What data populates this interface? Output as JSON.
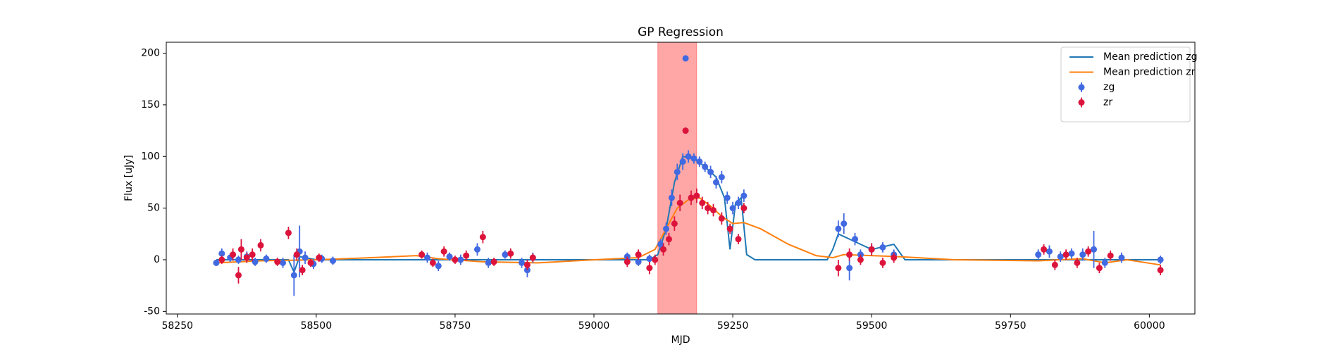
{
  "chart_data": {
    "type": "scatter",
    "title": "GP Regression",
    "xlabel": "MJD",
    "ylabel": "Flux [uJy]",
    "xlim": [
      58230,
      60082
    ],
    "ylim": [
      -52.5,
      210.6
    ],
    "xticks": [
      58250,
      58500,
      58750,
      59000,
      59250,
      59500,
      59750,
      60000
    ],
    "yticks": [
      -50,
      0,
      50,
      100,
      150,
      200
    ],
    "legend": "upper right",
    "span": {
      "x": [
        59115,
        59185
      ],
      "color": "#ff0000"
    },
    "series": [
      {
        "name": "Mean prediction zg",
        "kind": "line",
        "color": "#1f77b4",
        "x": [
          58320,
          58400,
          58450,
          58460,
          58470,
          58500,
          58550,
          58700,
          58900,
          59100,
          59115,
          59130,
          59145,
          59160,
          59180,
          59200,
          59220,
          59235,
          59245,
          59255,
          59265,
          59275,
          59290,
          59420,
          59430,
          59440,
          59460,
          59480,
          59500,
          59540,
          59560,
          59700,
          60020
        ],
        "values": [
          0,
          0,
          0,
          -12,
          3,
          0,
          0,
          0,
          0,
          0,
          5,
          30,
          75,
          100,
          98,
          90,
          80,
          60,
          10,
          55,
          60,
          5,
          0,
          0,
          10,
          25,
          20,
          15,
          10,
          15,
          0,
          0,
          0
        ]
      },
      {
        "name": "Mean prediction zr",
        "kind": "line",
        "color": "#ff7f0e",
        "x": [
          58320,
          58400,
          58500,
          58600,
          58680,
          58720,
          58800,
          58900,
          59000,
          59080,
          59110,
          59130,
          59150,
          59170,
          59190,
          59210,
          59230,
          59250,
          59270,
          59300,
          59350,
          59400,
          59430,
          59450,
          59500,
          59550,
          59650,
          59800,
          59880,
          59920,
          59960,
          60020
        ],
        "values": [
          -3,
          -1,
          0,
          2,
          4,
          1,
          -2,
          -3,
          0,
          2,
          10,
          30,
          50,
          58,
          60,
          52,
          42,
          35,
          36,
          30,
          15,
          4,
          2,
          5,
          4,
          3,
          0,
          -1,
          1,
          -3,
          0,
          -5
        ]
      },
      {
        "name": "zg",
        "kind": "errorbar",
        "color": "#4169e1",
        "x": [
          58320,
          58330,
          58345,
          58360,
          58375,
          58390,
          58410,
          58440,
          58460,
          58470,
          58480,
          58495,
          58510,
          58530,
          58700,
          58720,
          58740,
          58760,
          58790,
          58810,
          58840,
          58870,
          58880,
          58890,
          59060,
          59080,
          59100,
          59120,
          59130,
          59140,
          59150,
          59160,
          59165,
          59170,
          59180,
          59190,
          59200,
          59210,
          59220,
          59230,
          59240,
          59250,
          59260,
          59270,
          59440,
          59450,
          59460,
          59470,
          59480,
          59500,
          59520,
          59540,
          59800,
          59820,
          59840,
          59860,
          59880,
          59900,
          59920,
          59950,
          60020
        ],
        "values": [
          -3,
          6,
          2,
          0,
          3,
          -2,
          1,
          -3,
          -15,
          8,
          2,
          -4,
          1,
          -1,
          2,
          -6,
          3,
          0,
          10,
          -3,
          5,
          -3,
          -10,
          2,
          3,
          -2,
          1,
          15,
          30,
          60,
          85,
          95,
          195,
          100,
          98,
          95,
          90,
          85,
          75,
          80,
          60,
          50,
          55,
          62,
          30,
          35,
          -8,
          20,
          5,
          10,
          12,
          5,
          5,
          8,
          3,
          6,
          5,
          10,
          -3,
          2,
          0
        ],
        "errors": [
          3,
          5,
          4,
          4,
          5,
          4,
          4,
          5,
          20,
          25,
          6,
          5,
          4,
          4,
          5,
          5,
          4,
          5,
          6,
          5,
          4,
          5,
          7,
          5,
          4,
          4,
          4,
          5,
          6,
          8,
          8,
          8,
          3,
          6,
          5,
          5,
          5,
          6,
          6,
          6,
          6,
          6,
          6,
          6,
          8,
          10,
          12,
          6,
          5,
          6,
          5,
          5,
          5,
          6,
          5,
          5,
          6,
          18,
          5,
          5,
          4
        ]
      },
      {
        "name": "zr",
        "kind": "errorbar",
        "color": "#dc143c",
        "x": [
          58330,
          58350,
          58360,
          58365,
          58375,
          58385,
          58400,
          58430,
          58450,
          58465,
          58475,
          58490,
          58505,
          58690,
          58710,
          58730,
          58750,
          58770,
          58800,
          58820,
          58850,
          58880,
          58890,
          59060,
          59080,
          59100,
          59110,
          59125,
          59135,
          59145,
          59155,
          59165,
          59175,
          59185,
          59195,
          59205,
          59215,
          59230,
          59245,
          59260,
          59270,
          59440,
          59460,
          59480,
          59500,
          59520,
          59540,
          59810,
          59830,
          59850,
          59870,
          59890,
          59910,
          59930,
          60020
        ],
        "values": [
          0,
          5,
          -15,
          10,
          2,
          5,
          14,
          -2,
          26,
          5,
          -10,
          -3,
          2,
          5,
          -3,
          8,
          0,
          4,
          22,
          -2,
          6,
          -5,
          2,
          -2,
          5,
          -8,
          0,
          10,
          20,
          35,
          55,
          125,
          60,
          62,
          55,
          50,
          48,
          40,
          30,
          20,
          50,
          -8,
          5,
          0,
          10,
          -3,
          2,
          10,
          -5,
          5,
          -3,
          8,
          -8,
          4,
          -10
        ],
        "errors": [
          4,
          6,
          8,
          10,
          5,
          6,
          6,
          4,
          6,
          6,
          5,
          4,
          4,
          4,
          4,
          5,
          4,
          5,
          6,
          4,
          5,
          5,
          4,
          5,
          5,
          6,
          5,
          6,
          6,
          7,
          8,
          3,
          7,
          7,
          6,
          6,
          6,
          6,
          5,
          5,
          5,
          8,
          6,
          5,
          6,
          5,
          5,
          5,
          5,
          5,
          5,
          5,
          5,
          5,
          5
        ]
      }
    ]
  }
}
